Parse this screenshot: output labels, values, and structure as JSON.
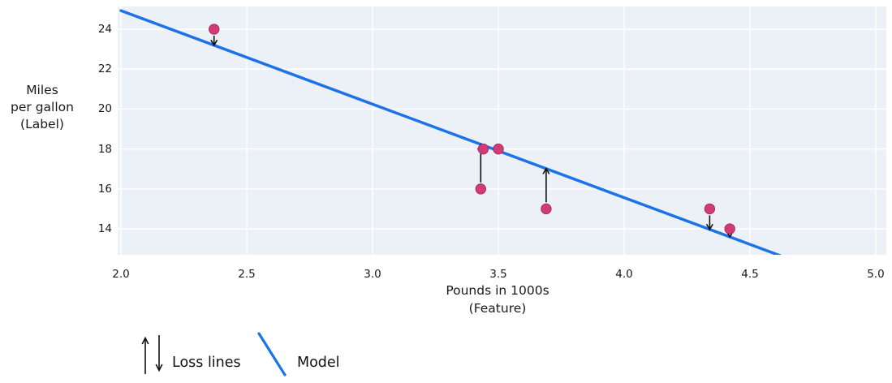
{
  "figure": {
    "background": "#ffffff",
    "plot_bg": "#ecf0f7",
    "grid_color": "#ffffff",
    "text_color": "#1a1a1a"
  },
  "chart_data": {
    "type": "scatter",
    "title": "",
    "xlabel": "Pounds in 1000s\n(Feature)",
    "ylabel": "Miles\nper gallon\n(Label)",
    "x_ticks": [
      "2.0",
      "2.5",
      "3.0",
      "3.5",
      "4.0",
      "4.5",
      "5.0"
    ],
    "x_tick_values": [
      2.0,
      2.5,
      3.0,
      3.5,
      4.0,
      4.5,
      5.0
    ],
    "y_ticks": [
      "14",
      "16",
      "18",
      "20",
      "22",
      "24"
    ],
    "y_tick_values": [
      14,
      16,
      18,
      20,
      22,
      24
    ],
    "xlim": [
      1.987,
      5.042
    ],
    "ylim": [
      12.7,
      25.14
    ],
    "grid": true,
    "points": [
      {
        "x": 2.37,
        "y": 24,
        "loss_arrow": true
      },
      {
        "x": 3.44,
        "y": 18,
        "loss_arrow": false
      },
      {
        "x": 3.5,
        "y": 18,
        "loss_arrow": false
      },
      {
        "x": 3.43,
        "y": 16,
        "loss_arrow": true
      },
      {
        "x": 3.69,
        "y": 15,
        "loss_arrow": true
      },
      {
        "x": 4.34,
        "y": 15,
        "loss_arrow": true
      },
      {
        "x": 4.42,
        "y": 14,
        "loss_arrow": true
      }
    ],
    "model_line": {
      "x1": 2.0,
      "y1": 24.93,
      "x2": 4.62,
      "y2": 12.66
    },
    "point_color": "#d13c74",
    "point_edge_color": "#b02863",
    "model_color": "#1a73e8",
    "arrow_color": "#111111",
    "legend_position": "bottom-left"
  },
  "legend": {
    "loss_label": "Loss lines",
    "model_label": "Model"
  }
}
